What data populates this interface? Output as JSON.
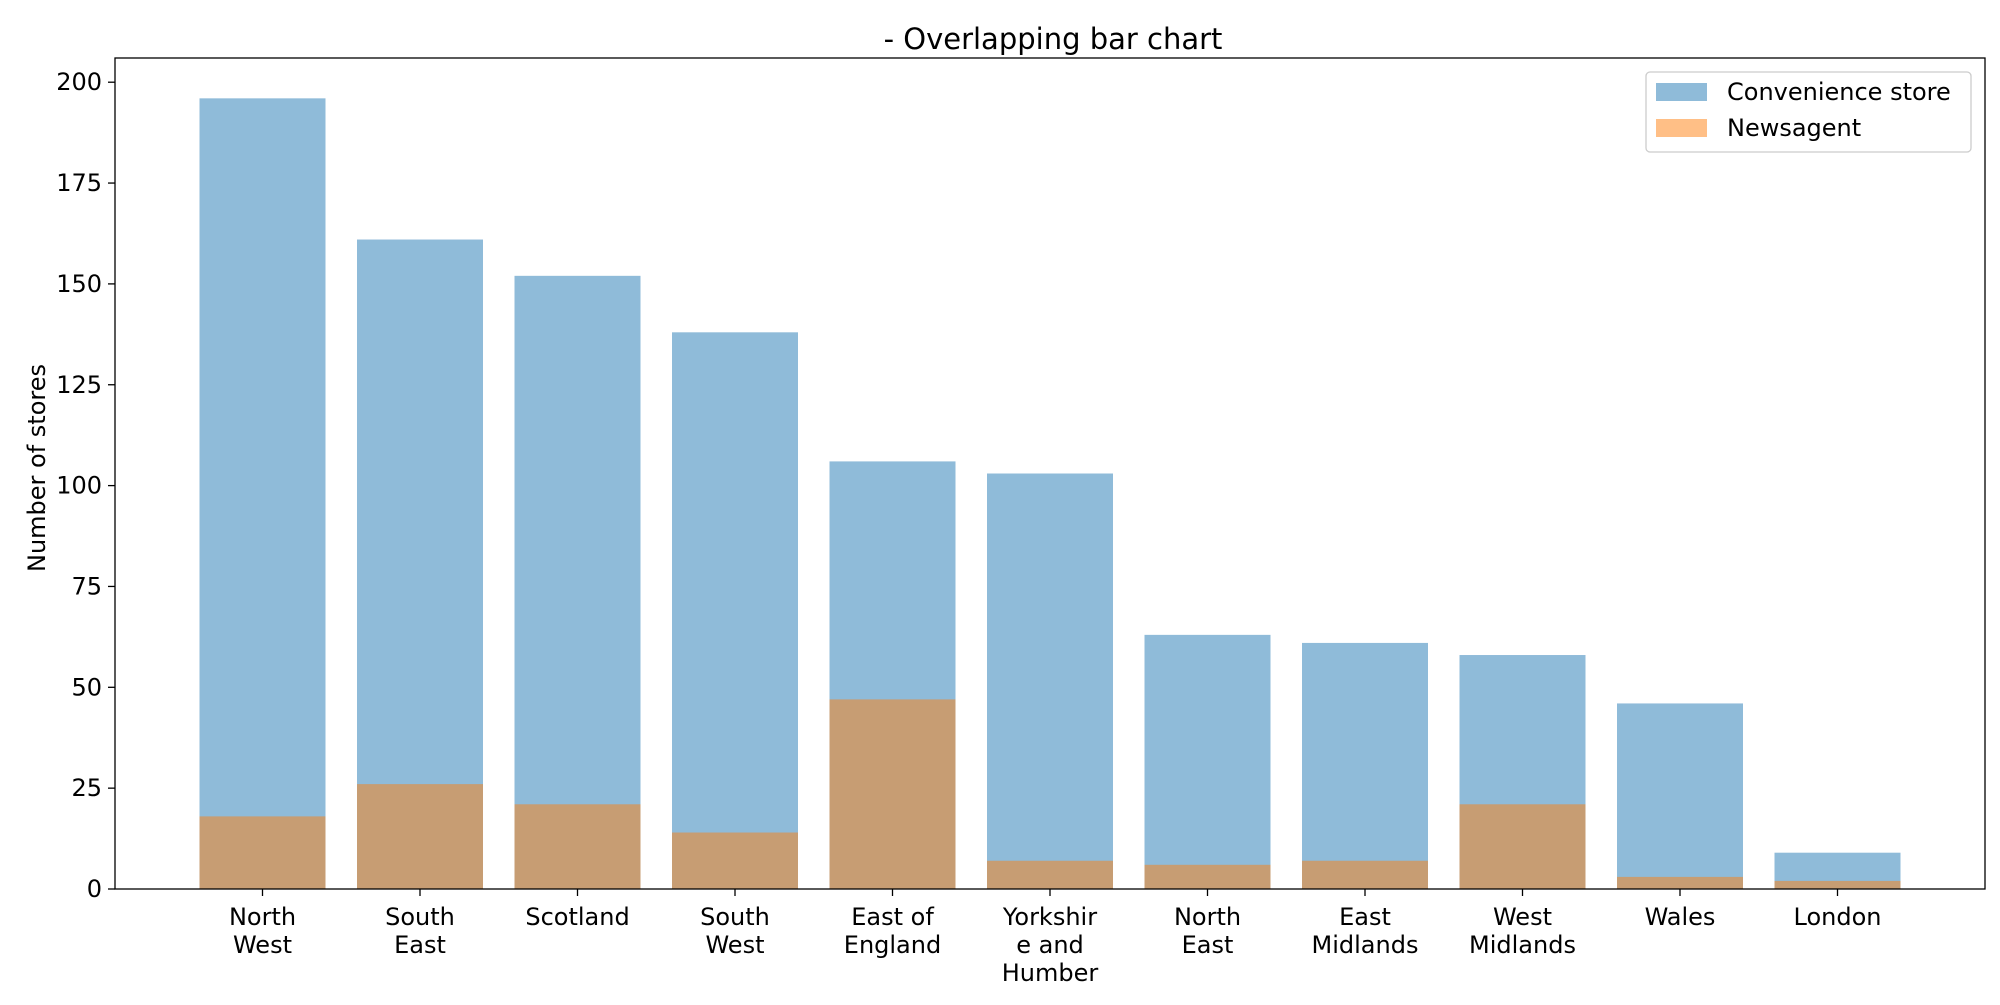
{
  "chart_data": {
    "type": "bar",
    "title": "- Overlapping bar chart",
    "xlabel": "",
    "ylabel": "Number of stores",
    "ylim": [
      0,
      206
    ],
    "yticks": [
      0,
      25,
      50,
      75,
      100,
      125,
      150,
      175,
      200
    ],
    "categories": [
      "North West",
      "South East",
      "Scotland",
      "South West",
      "East of England",
      "Yorkshire and Humber",
      "North East",
      "East Midlands",
      "West Midlands",
      "Wales",
      "London"
    ],
    "category_label_lines": [
      [
        "North",
        "West"
      ],
      [
        "South",
        "East"
      ],
      [
        "Scotland"
      ],
      [
        "South",
        "West"
      ],
      [
        "East of",
        "England"
      ],
      [
        "Yorkshir",
        "e and",
        "Humber"
      ],
      [
        "North",
        "East"
      ],
      [
        "East",
        "Midlands"
      ],
      [
        "West",
        "Midlands"
      ],
      [
        "Wales"
      ],
      [
        "London"
      ]
    ],
    "series": [
      {
        "name": "Convenience store",
        "color": "#1f77b4",
        "opacity": 0.5,
        "values": [
          196,
          161,
          152,
          138,
          106,
          103,
          63,
          61,
          58,
          46,
          9
        ]
      },
      {
        "name": "Newsagent",
        "color": "#ff7f0e",
        "opacity": 0.5,
        "values": [
          18,
          26,
          21,
          14,
          47,
          7,
          6,
          7,
          21,
          3,
          2
        ]
      }
    ],
    "legend_position": "top-right",
    "grid": false
  }
}
